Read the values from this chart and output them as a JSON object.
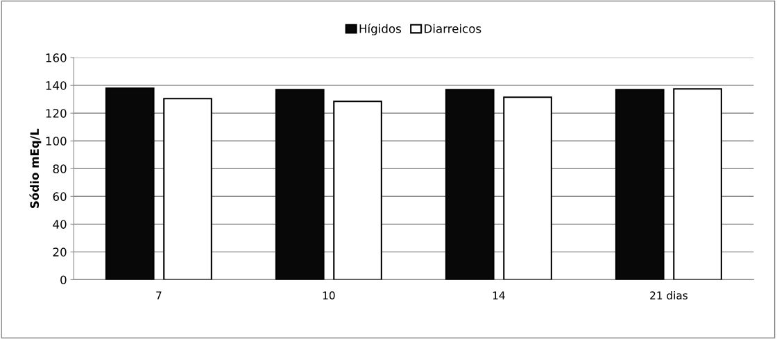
{
  "chart_data": {
    "type": "bar",
    "ylabel": "Sódio mEq/L",
    "categories": [
      "7",
      "10",
      "14",
      "21 dias"
    ],
    "series": [
      {
        "name": "Hígidos",
        "color": "#080808",
        "values": [
          138,
          137,
          137,
          137
        ]
      },
      {
        "name": "Diarreicos",
        "color": "#ffffff",
        "values": [
          130.5,
          128.5,
          131.5,
          137.5
        ]
      }
    ],
    "ylim": [
      0,
      160
    ],
    "yticks": [
      0,
      20,
      40,
      60,
      80,
      100,
      120,
      140,
      160
    ],
    "grid": "y",
    "legend": "top"
  }
}
